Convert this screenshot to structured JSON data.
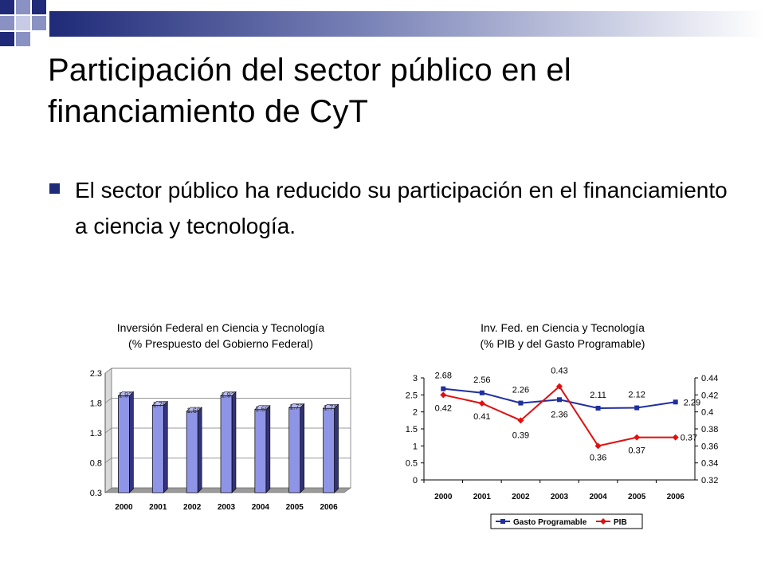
{
  "slide": {
    "title": "Participación del sector público en el financiamiento de CyT",
    "bullet": "El sector público ha reducido su participación en el financiamiento a ciencia y tecnología.",
    "colors": {
      "accent": "#1f2a78",
      "bar_fill": "#8f95e6",
      "series_navy": "#1f2fa0",
      "series_red": "#e01010"
    }
  },
  "chart_data": [
    {
      "type": "bar",
      "title": "Inversión Federal en Ciencia y Tecnología",
      "subtitle": "(% Prespuesto del Gobierno Federal)",
      "categories": [
        "2000",
        "2001",
        "2002",
        "2003",
        "2004",
        "2005",
        "2006"
      ],
      "values": [
        1.92,
        1.76,
        1.66,
        1.92,
        1.69,
        1.72,
        1.71
      ],
      "data_labels": [
        "1.92",
        "1.76",
        "1.66",
        "1.92",
        "1.69",
        "1.72",
        "1.71"
      ],
      "ylim": [
        0.3,
        2.3
      ],
      "yticks": [
        "0.3",
        "0.8",
        "1.3",
        "1.8",
        "2.3"
      ],
      "grid": true,
      "xlabel": "",
      "ylabel": ""
    },
    {
      "type": "line",
      "title": "Inv. Fed. en Ciencia y Tecnología",
      "subtitle": "(% PIB y del Gasto Programable)",
      "categories": [
        "2000",
        "2001",
        "2002",
        "2003",
        "2004",
        "2005",
        "2006"
      ],
      "series": [
        {
          "name": "Gasto Programable",
          "axis": "left",
          "values": [
            2.68,
            2.56,
            2.26,
            2.36,
            2.11,
            2.12,
            2.29
          ],
          "labels": [
            "2.68",
            "2.56",
            "2.26",
            "2.36",
            "2.11",
            "2.12",
            "2.29"
          ]
        },
        {
          "name": "PIB",
          "axis": "right",
          "values": [
            0.42,
            0.41,
            0.39,
            0.43,
            0.36,
            0.37,
            0.37
          ],
          "labels": [
            "0.42",
            "0.41",
            "0.39",
            "0.43",
            "0.36",
            "0.37",
            "0.37"
          ]
        }
      ],
      "ylim_left": [
        0,
        3
      ],
      "yticks_left": [
        "0",
        "0.5",
        "1",
        "1.5",
        "2",
        "2.5",
        "3"
      ],
      "ylim_right": [
        0.32,
        0.44
      ],
      "yticks_right": [
        "0.32",
        "0.34",
        "0.36",
        "0.38",
        "0.4",
        "0.42",
        "0.44"
      ],
      "legend_position": "bottom",
      "grid": false,
      "xlabel": "",
      "ylabel": ""
    }
  ]
}
